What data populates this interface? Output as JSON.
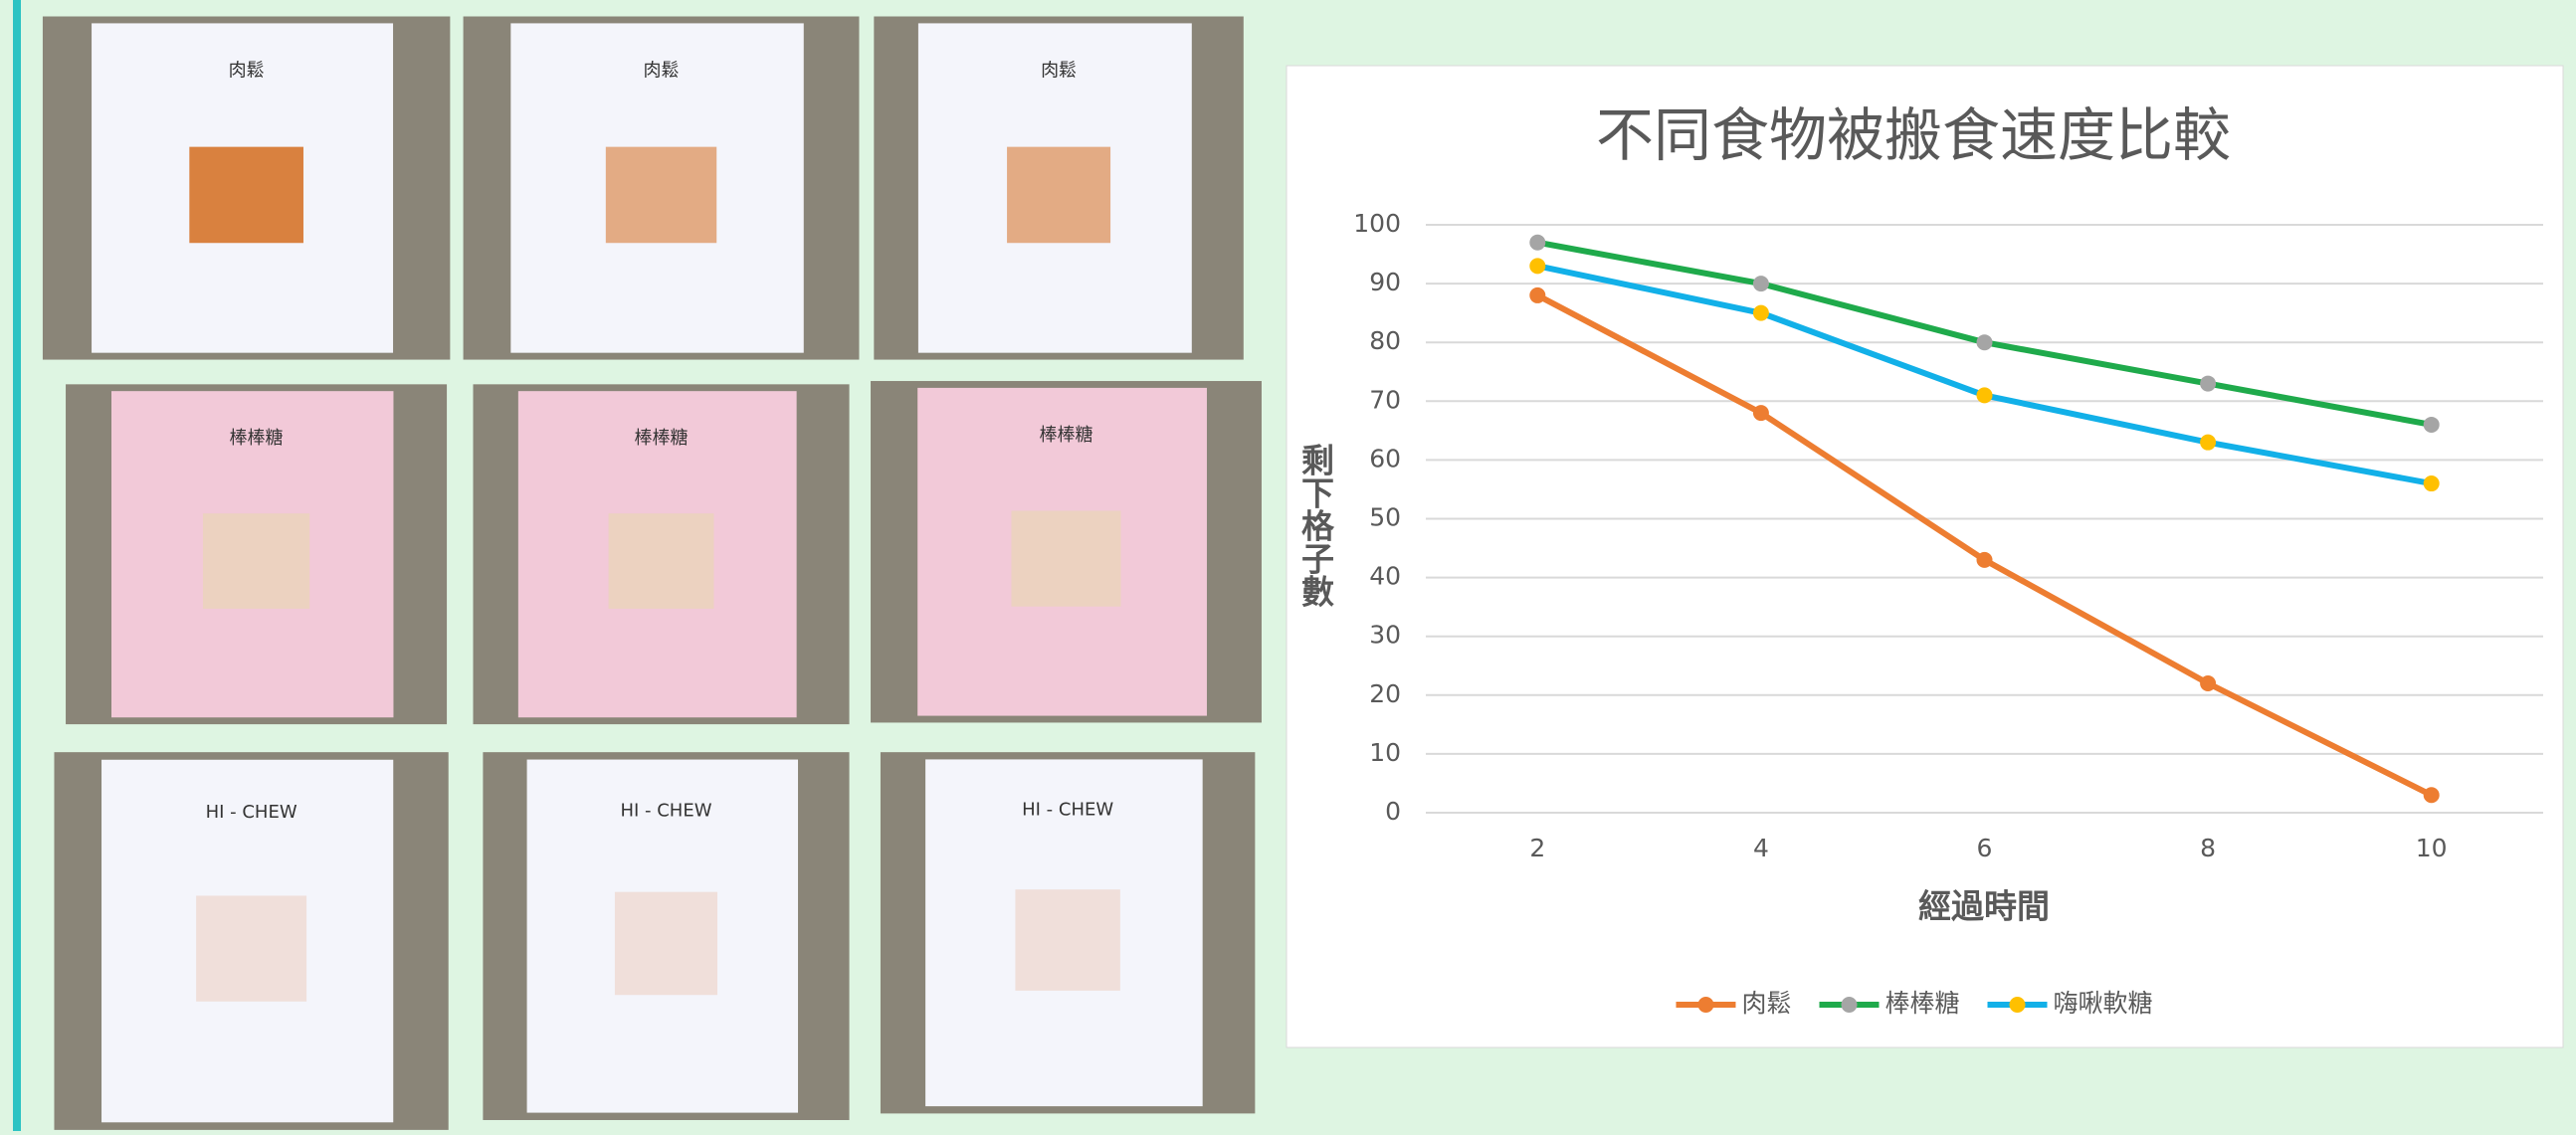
{
  "photos": {
    "labels": [
      "肉鬆",
      "肉鬆",
      "肉鬆",
      "棒棒糖",
      "棒棒糖",
      "棒棒糖",
      "HI - CHEW",
      "HI - CHEW",
      "HI - CHEW"
    ]
  },
  "chart_data": {
    "type": "line",
    "title": "不同食物被搬食速度比較",
    "x_label": "經過時間",
    "y_label": "剩下格子數",
    "categories": [
      2,
      4,
      6,
      8,
      10
    ],
    "series": [
      {
        "name": "肉鬆",
        "color": "#ed7d31",
        "marker_color": "#ed7d31",
        "values": [
          88,
          68,
          43,
          22,
          3
        ]
      },
      {
        "name": "棒棒糖",
        "color": "#1faa4b",
        "marker_color": "#a5a5a5",
        "values": [
          97,
          90,
          80,
          73,
          66
        ]
      },
      {
        "name": "嗨啾軟糖",
        "color": "#12b0e8",
        "marker_color": "#ffc000",
        "values": [
          93,
          85,
          71,
          63,
          56
        ]
      }
    ],
    "ylim": [
      0,
      100
    ],
    "yticks": [
      0,
      10,
      20,
      30,
      40,
      50,
      60,
      70,
      80,
      90,
      100
    ],
    "grid": true,
    "legend": "bottom"
  }
}
